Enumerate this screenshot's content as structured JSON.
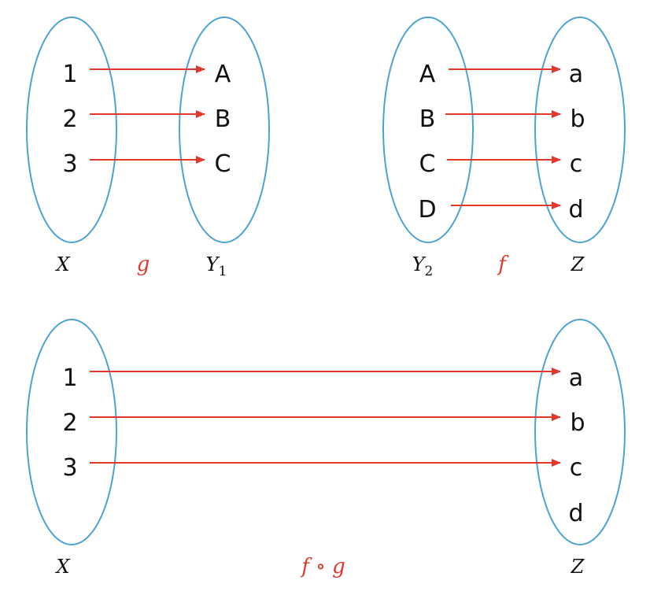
{
  "colors": {
    "set_outline": "#4da3d4",
    "arrow": "#e0392b",
    "function_label": "#e0392b",
    "text": "#111111"
  },
  "panel_g": {
    "domain": {
      "label": "X",
      "elements": [
        "1",
        "2",
        "3"
      ]
    },
    "codomain": {
      "label": "Y",
      "label_subscript": "1",
      "elements": [
        "A",
        "B",
        "C"
      ]
    },
    "function_label": "g",
    "mapping": [
      [
        "1",
        "A"
      ],
      [
        "2",
        "B"
      ],
      [
        "3",
        "C"
      ]
    ]
  },
  "panel_f": {
    "domain": {
      "label": "Y",
      "label_subscript": "2",
      "elements": [
        "A",
        "B",
        "C",
        "D"
      ]
    },
    "codomain": {
      "label": "Z",
      "elements": [
        "a",
        "b",
        "c",
        "d"
      ]
    },
    "function_label": "f",
    "mapping": [
      [
        "A",
        "a"
      ],
      [
        "B",
        "b"
      ],
      [
        "C",
        "c"
      ],
      [
        "D",
        "d"
      ]
    ]
  },
  "panel_composite": {
    "domain": {
      "label": "X",
      "elements": [
        "1",
        "2",
        "3"
      ]
    },
    "codomain": {
      "label": "Z",
      "elements": [
        "a",
        "b",
        "c",
        "d"
      ]
    },
    "function_label": "f ∘ g",
    "mapping": [
      [
        "1",
        "a"
      ],
      [
        "2",
        "b"
      ],
      [
        "3",
        "c"
      ]
    ]
  }
}
